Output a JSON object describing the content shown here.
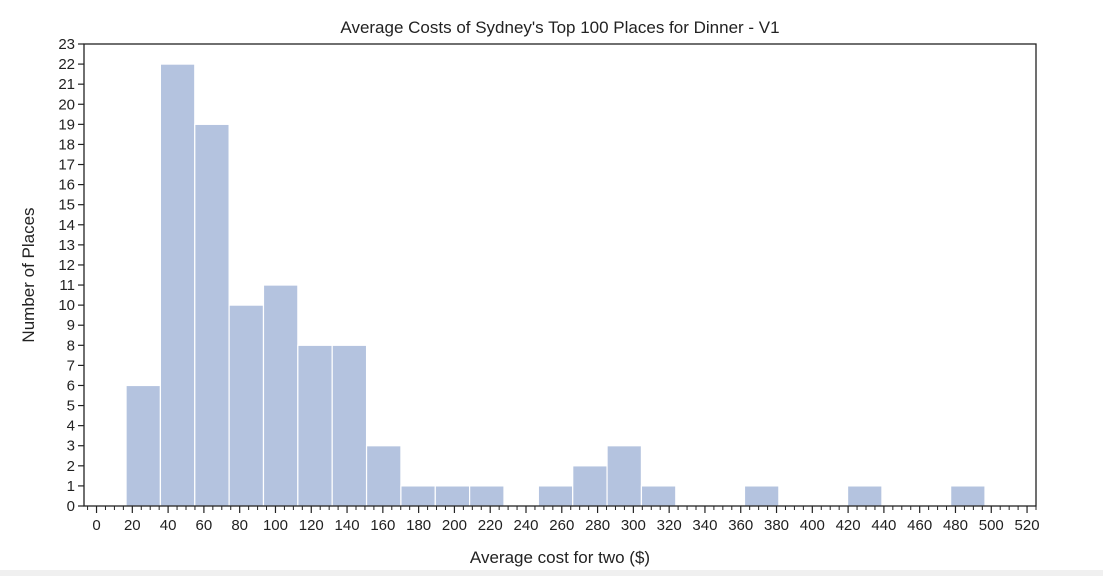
{
  "chart_data": {
    "type": "bar",
    "title": "Average Costs of Sydney's Top 100 Places for Dinner - V1",
    "xlabel": "Average cost for two ($)",
    "ylabel": "Number of Places",
    "xlim": [
      -7,
      525
    ],
    "ylim": [
      0,
      23
    ],
    "x_ticks": [
      0,
      20,
      40,
      60,
      80,
      100,
      120,
      140,
      160,
      180,
      200,
      220,
      240,
      260,
      280,
      300,
      320,
      340,
      360,
      380,
      400,
      420,
      440,
      460,
      480,
      500,
      520
    ],
    "y_ticks": [
      0,
      1,
      2,
      3,
      4,
      5,
      6,
      7,
      8,
      9,
      10,
      11,
      12,
      13,
      14,
      15,
      16,
      17,
      18,
      19,
      20,
      21,
      22,
      23
    ],
    "x_minor_step": 5,
    "bin_width": 19.2,
    "bins": [
      {
        "start": 16.5,
        "count": 6
      },
      {
        "start": 35.7,
        "count": 22
      },
      {
        "start": 54.9,
        "count": 19
      },
      {
        "start": 74.1,
        "count": 10
      },
      {
        "start": 93.3,
        "count": 11
      },
      {
        "start": 112.5,
        "count": 8
      },
      {
        "start": 131.7,
        "count": 8
      },
      {
        "start": 150.9,
        "count": 3
      },
      {
        "start": 170.1,
        "count": 1
      },
      {
        "start": 189.3,
        "count": 1
      },
      {
        "start": 208.5,
        "count": 1
      },
      {
        "start": 227.7,
        "count": 0
      },
      {
        "start": 246.9,
        "count": 1
      },
      {
        "start": 266.1,
        "count": 2
      },
      {
        "start": 285.3,
        "count": 3
      },
      {
        "start": 304.5,
        "count": 1
      },
      {
        "start": 323.7,
        "count": 0
      },
      {
        "start": 342.9,
        "count": 0
      },
      {
        "start": 362.1,
        "count": 1
      },
      {
        "start": 381.3,
        "count": 0
      },
      {
        "start": 400.5,
        "count": 0
      },
      {
        "start": 419.7,
        "count": 1
      },
      {
        "start": 438.9,
        "count": 0
      },
      {
        "start": 458.1,
        "count": 0
      },
      {
        "start": 477.3,
        "count": 1
      }
    ],
    "colors": {
      "bar": "#b4c3df",
      "bar_edge": "#ffffff",
      "axis": "#222222",
      "text": "#222222"
    },
    "grid": false
  }
}
